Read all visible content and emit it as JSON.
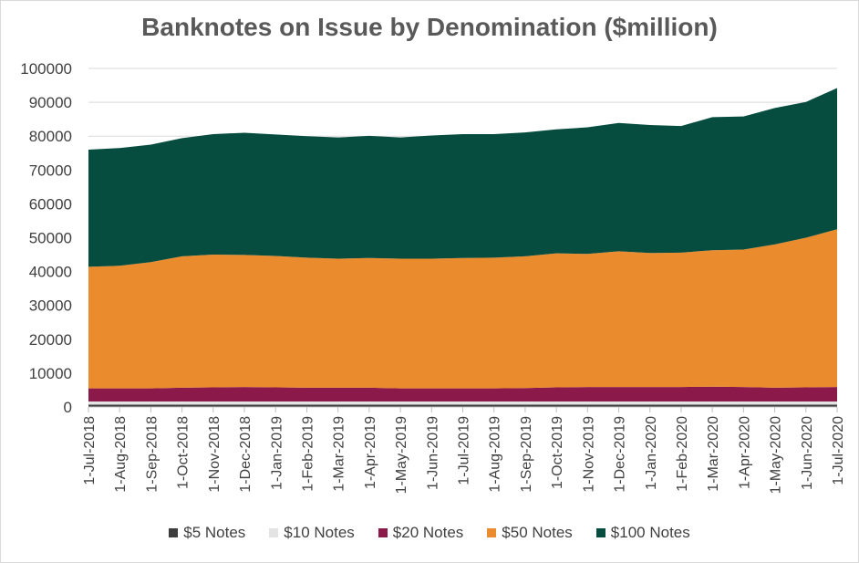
{
  "chart_data": {
    "type": "area",
    "stacked": true,
    "title": "Banknotes on Issue by Denomination ($million)",
    "xlabel": "",
    "ylabel": "",
    "ylim": [
      0,
      100000
    ],
    "yticks": [
      "0",
      "10000",
      "20000",
      "30000",
      "40000",
      "50000",
      "60000",
      "70000",
      "80000",
      "90000",
      "100000"
    ],
    "grid": true,
    "legend_position": "bottom",
    "categories": [
      "1-Jul-2018",
      "1-Aug-2018",
      "1-Sep-2018",
      "1-Oct-2018",
      "1-Nov-2018",
      "1-Dec-2018",
      "1-Jan-2019",
      "1-Feb-2019",
      "1-Mar-2019",
      "1-Apr-2019",
      "1-May-2019",
      "1-Jun-2019",
      "1-Jul-2019",
      "1-Aug-2019",
      "1-Sep-2019",
      "1-Oct-2019",
      "1-Nov-2019",
      "1-Dec-2019",
      "1-Jan-2020",
      "1-Feb-2020",
      "1-Mar-2020",
      "1-Apr-2020",
      "1-May-2020",
      "1-Jun-2020",
      "1-Jul-2020"
    ],
    "series": [
      {
        "name": "$5 Notes",
        "color": "#3d3d3d",
        "values": [
          700,
          700,
          700,
          700,
          700,
          700,
          700,
          700,
          700,
          700,
          700,
          700,
          700,
          700,
          700,
          700,
          700,
          700,
          700,
          700,
          700,
          700,
          700,
          700,
          700
        ]
      },
      {
        "name": "$10 Notes",
        "color": "#e3e3e3",
        "values": [
          900,
          900,
          900,
          900,
          900,
          900,
          900,
          900,
          900,
          900,
          900,
          900,
          900,
          900,
          900,
          900,
          900,
          900,
          900,
          900,
          900,
          900,
          900,
          900,
          900
        ]
      },
      {
        "name": "$20 Notes",
        "color": "#8b1a4a",
        "values": [
          3900,
          3900,
          3900,
          4100,
          4200,
          4300,
          4200,
          4100,
          4100,
          4100,
          3900,
          3900,
          3900,
          3900,
          4000,
          4200,
          4300,
          4300,
          4300,
          4300,
          4400,
          4300,
          4100,
          4200,
          4300
        ]
      },
      {
        "name": "$50 Notes",
        "color": "#ea8c2e",
        "values": [
          35900,
          36200,
          37300,
          38800,
          39200,
          39000,
          38800,
          38400,
          38100,
          38300,
          38300,
          38300,
          38500,
          38600,
          38900,
          39600,
          39300,
          40100,
          39600,
          39700,
          40300,
          40600,
          42300,
          44200,
          46600
        ]
      },
      {
        "name": "$100 Notes",
        "color": "#074d3f",
        "values": [
          34600,
          34800,
          34700,
          34900,
          35600,
          36100,
          35900,
          35900,
          35800,
          36100,
          35800,
          36400,
          36600,
          36500,
          36600,
          36600,
          37400,
          37900,
          37800,
          37400,
          39300,
          39300,
          40300,
          40100,
          41700
        ]
      }
    ]
  }
}
